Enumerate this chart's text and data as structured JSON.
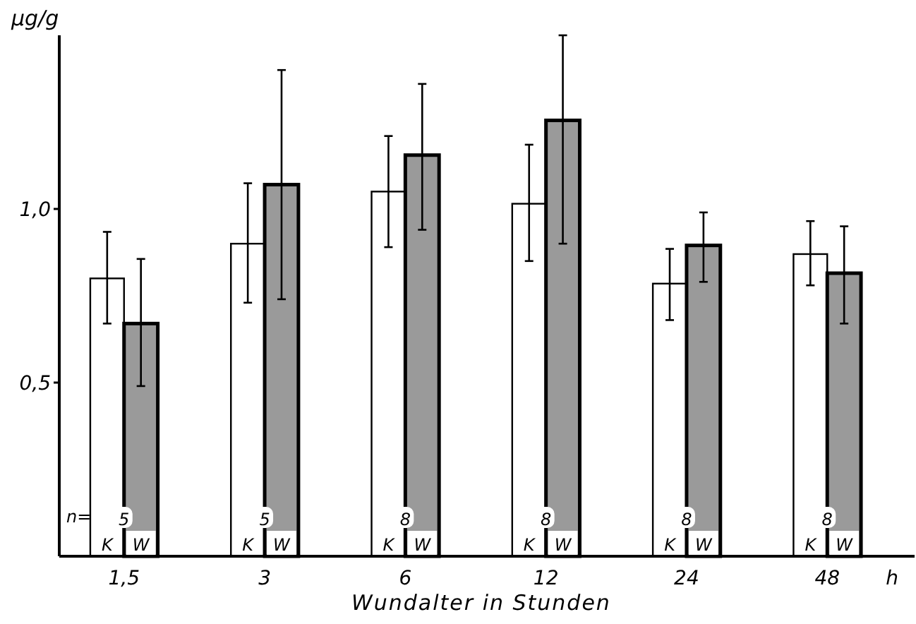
{
  "chart_data": {
    "type": "bar",
    "ylabel": "μg/g",
    "xlabel": "Wundalter in Stunden",
    "categories": [
      "1,5",
      "3",
      "6",
      "12",
      "24",
      "48"
    ],
    "series": [
      {
        "name": "K",
        "color": "#ffffff",
        "values": [
          0.8,
          0.9,
          1.05,
          1.015,
          0.785,
          0.87
        ],
        "errors": [
          [
            0.67,
            0.934
          ],
          [
            0.73,
            1.074
          ],
          [
            0.89,
            1.21
          ],
          [
            0.85,
            1.185
          ],
          [
            0.68,
            0.885
          ],
          [
            0.78,
            0.965
          ]
        ]
      },
      {
        "name": "W",
        "color": "#9a9a9a",
        "values": [
          0.67,
          1.07,
          1.155,
          1.255,
          0.895,
          0.815
        ],
        "errors": [
          [
            0.49,
            0.856
          ],
          [
            0.74,
            1.4
          ],
          [
            0.94,
            1.36
          ],
          [
            0.9,
            1.5
          ],
          [
            0.79,
            0.99
          ],
          [
            0.67,
            0.95
          ]
        ]
      }
    ],
    "ylim": [
      0,
      1.5
    ],
    "yticks": [
      {
        "value": 0.5,
        "label": "0,5"
      },
      {
        "value": 1.0,
        "label": "1,0"
      }
    ],
    "annotations": [
      "n=",
      {
        "text": "5",
        "x": "1,5"
      },
      {
        "text": "5",
        "x": "3"
      },
      {
        "text": "8",
        "x": "6"
      },
      {
        "text": "8",
        "x": "12"
      },
      {
        "text": "8",
        "x": "24"
      },
      {
        "text": "8",
        "x": "48"
      },
      "h"
    ],
    "grid": false
  }
}
